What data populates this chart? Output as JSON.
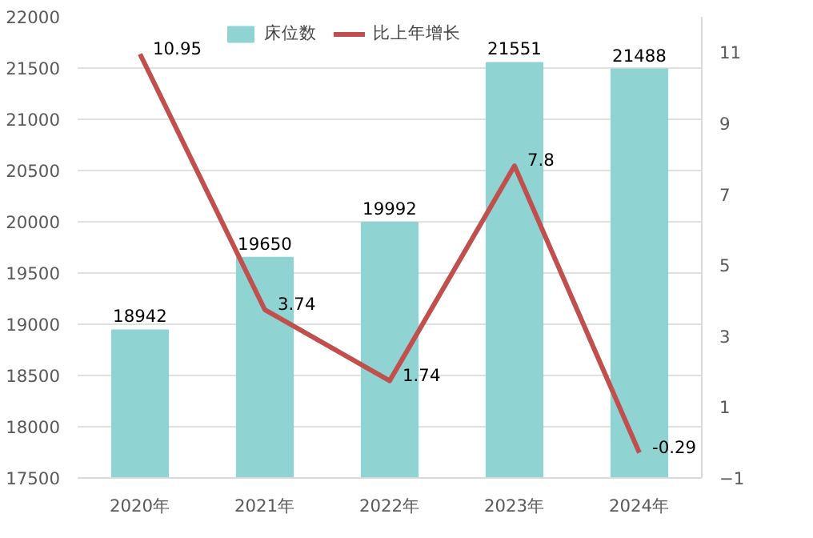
{
  "chart_data": {
    "type": "bar",
    "categories": [
      "2020年",
      "2021年",
      "2022年",
      "2023年",
      "2024年"
    ],
    "series": [
      {
        "name": "床位数",
        "color": "#8fd3d3",
        "values": [
          18942,
          19650,
          19992,
          21551,
          21488
        ]
      },
      {
        "name": "比上年增长",
        "type": "line",
        "axis": "y2",
        "color": "#c0504d",
        "values": [
          10.95,
          3.74,
          1.74,
          7.8,
          -0.29
        ]
      }
    ],
    "ylim": [
      17500,
      22000
    ],
    "yticks": [
      17500,
      18000,
      18500,
      19000,
      19500,
      20000,
      20500,
      21000,
      21500,
      22000
    ],
    "y2lim": [
      -1,
      12
    ],
    "y2ticks": [
      -1,
      1,
      3,
      5,
      7,
      9,
      11
    ],
    "grid": "y",
    "legend": "top",
    "data_labels": true
  }
}
